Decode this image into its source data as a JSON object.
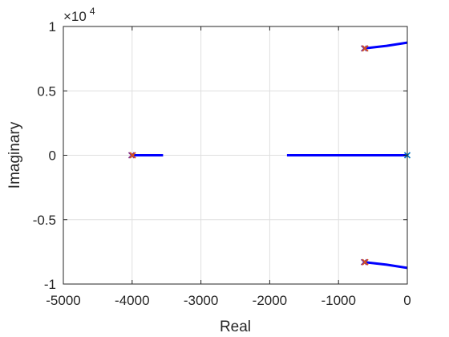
{
  "chart_data": {
    "type": "line",
    "title": "",
    "xlabel": "Real",
    "ylabel": "Imaginary",
    "xlim": [
      -5000,
      0
    ],
    "ylim": [
      -1,
      1
    ],
    "y_multiplier": {
      "base": "×10",
      "exponent": "4"
    },
    "grid": true,
    "x_ticks": [
      {
        "value": -5000,
        "label": "-5000"
      },
      {
        "value": -4000,
        "label": "-4000"
      },
      {
        "value": -3000,
        "label": "-3000"
      },
      {
        "value": -2000,
        "label": "-2000"
      },
      {
        "value": -1000,
        "label": "-1000"
      },
      {
        "value": 0,
        "label": "0"
      }
    ],
    "y_ticks": [
      {
        "value": -1,
        "label": "-1"
      },
      {
        "value": -0.5,
        "label": "-0.5"
      },
      {
        "value": 0,
        "label": "0"
      },
      {
        "value": 0.5,
        "label": "0.5"
      },
      {
        "value": 1,
        "label": "1"
      }
    ],
    "series": [
      {
        "color": "#0000ff",
        "values": [
          [
            -4000,
            0
          ],
          [
            -3550,
            0
          ]
        ]
      },
      {
        "color": "#0000ff",
        "values": [
          [
            -1750,
            0
          ],
          [
            0,
            0
          ]
        ]
      },
      {
        "color": "#0000ff",
        "values": [
          [
            -620,
            0.83
          ],
          [
            -300,
            0.85
          ],
          [
            0,
            0.875
          ]
        ]
      },
      {
        "color": "#0000ff",
        "values": [
          [
            -620,
            -0.83
          ],
          [
            -300,
            -0.85
          ],
          [
            0,
            -0.875
          ]
        ]
      }
    ],
    "markers": [
      {
        "x": -4000,
        "y": 0,
        "colors": [
          "#7e2f8e",
          "#d95319"
        ]
      },
      {
        "x": -620,
        "y": 0.83,
        "colors": [
          "#7e2f8e",
          "#d95319"
        ]
      },
      {
        "x": -620,
        "y": -0.83,
        "colors": [
          "#7e2f8e",
          "#d95319"
        ]
      },
      {
        "x": 0,
        "y": 0,
        "colors": [
          "#0072bd"
        ]
      }
    ]
  }
}
